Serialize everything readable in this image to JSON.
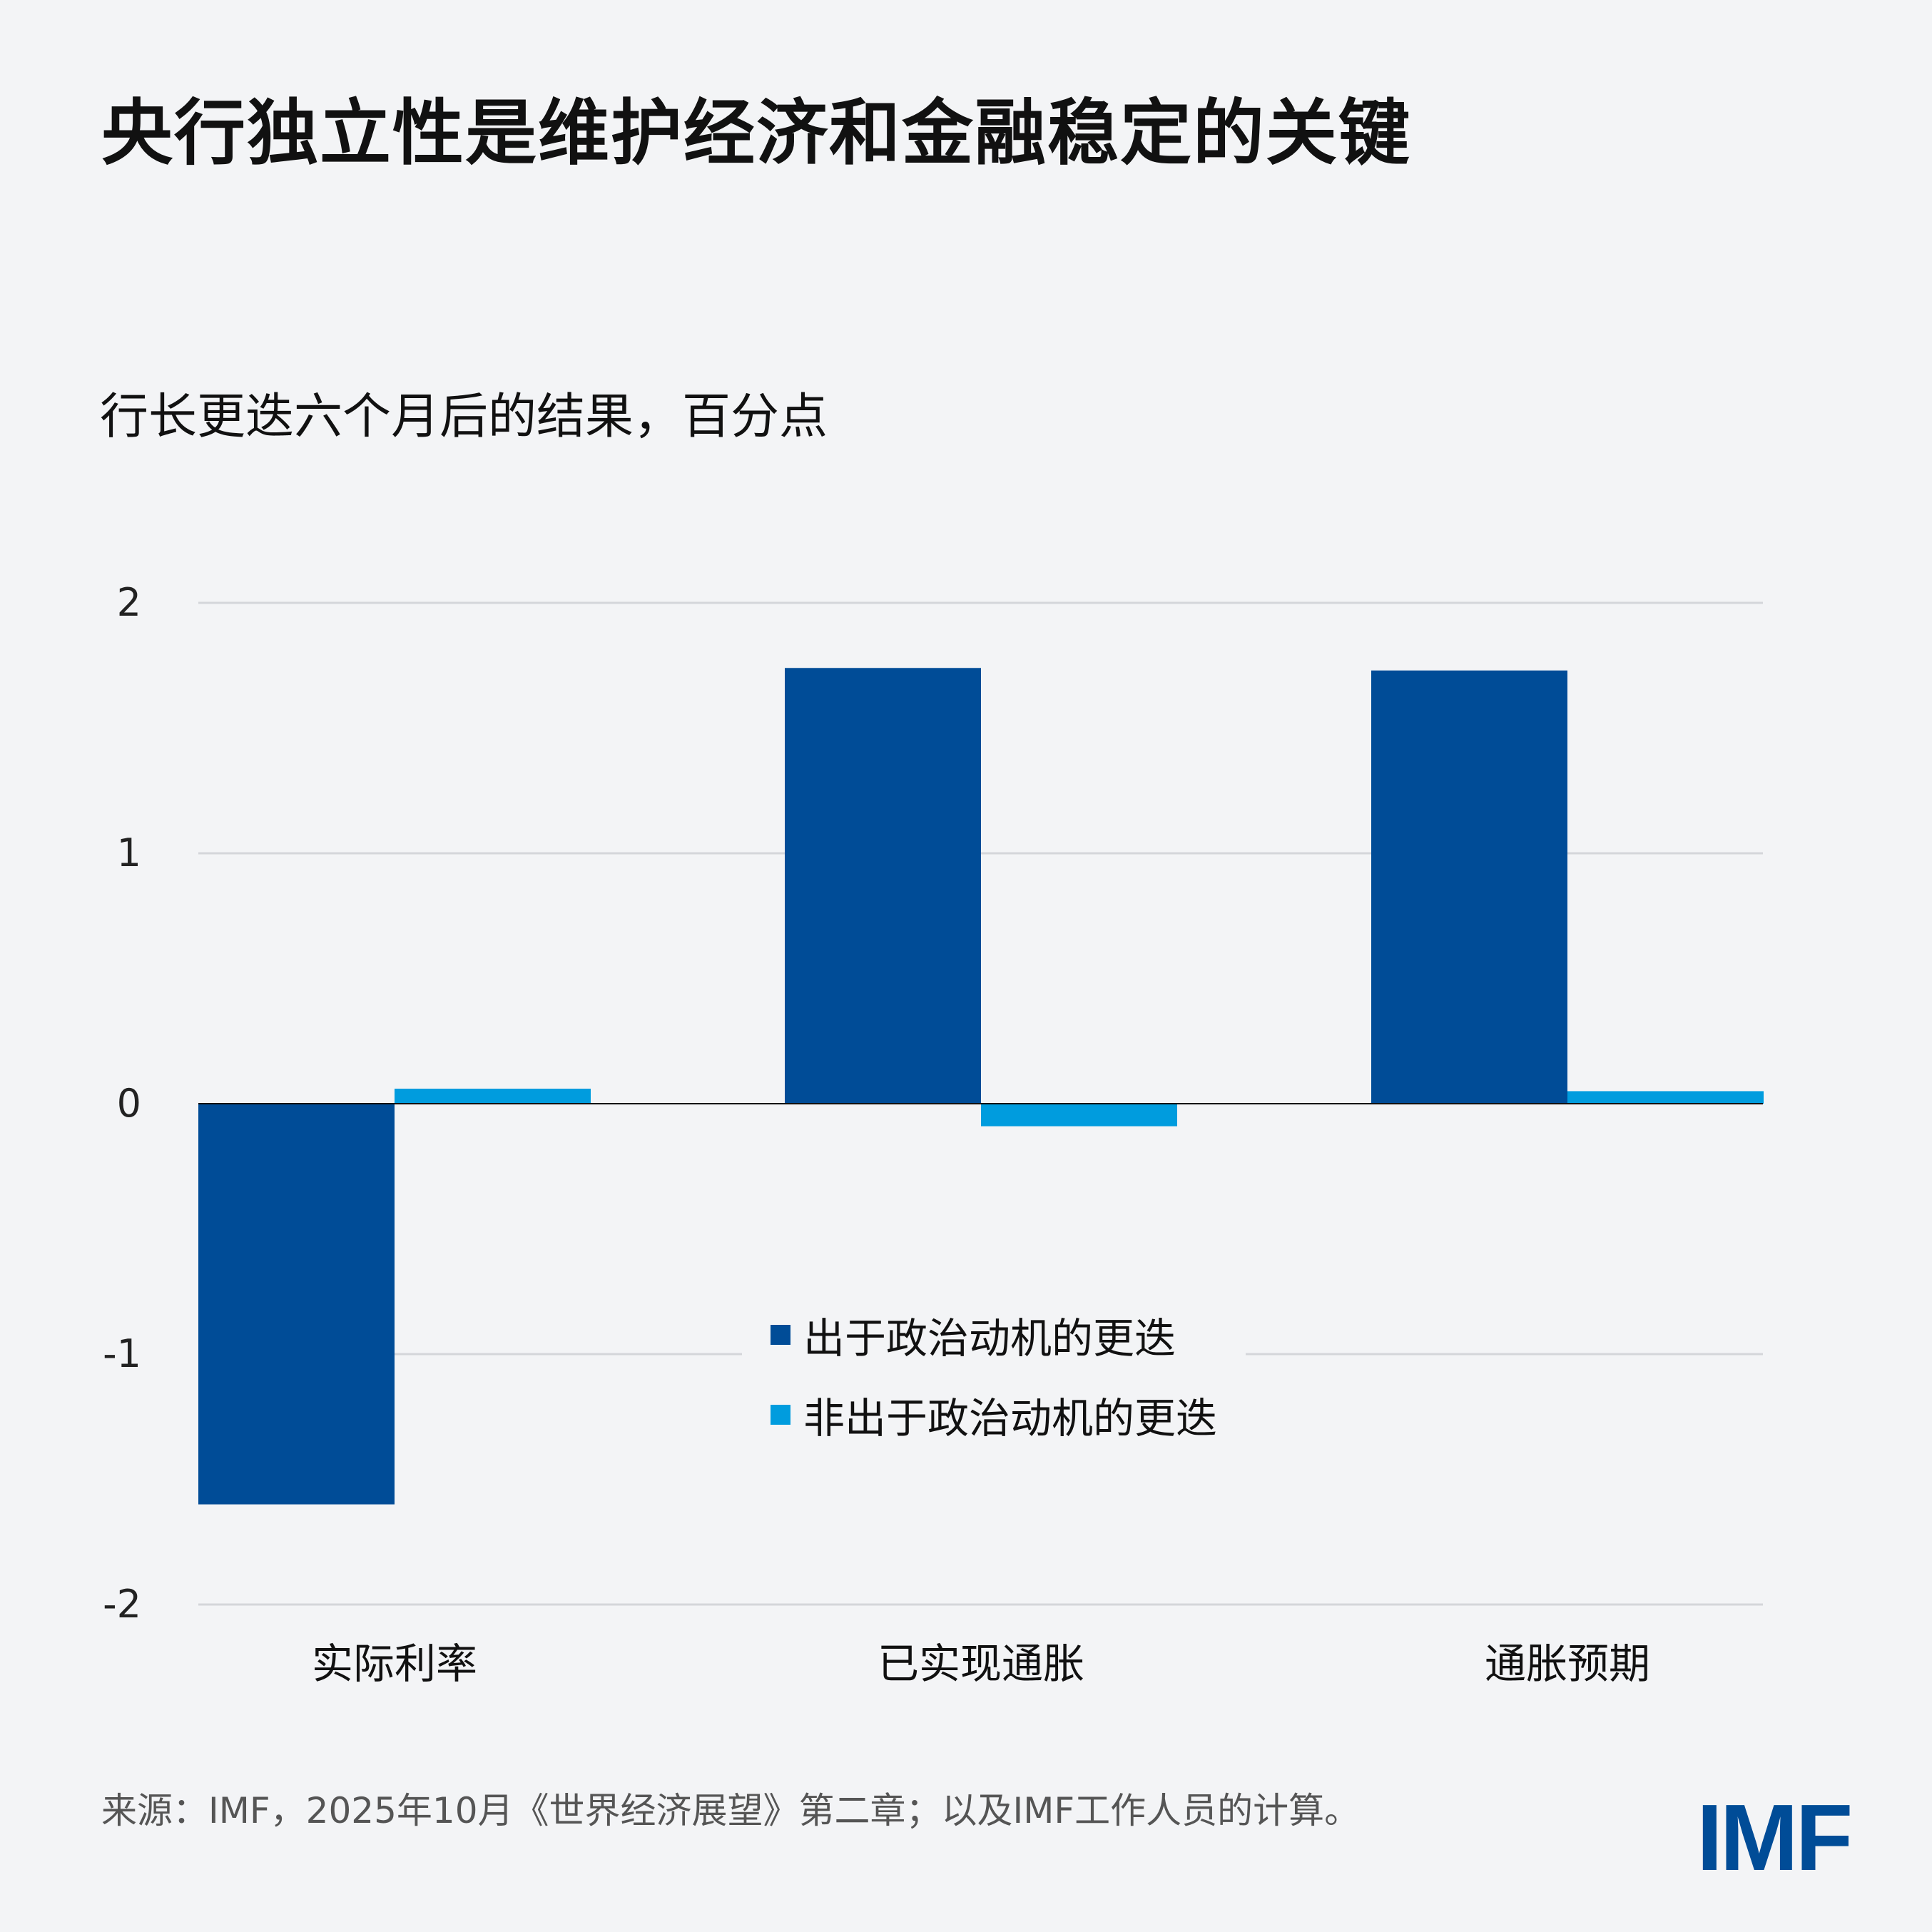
{
  "title": "央行独立性是维护经济和金融稳定的关键",
  "subtitle": "行长更迭六个月后的结果，百分点",
  "source": "来源：IMF，2025年10月《世界经济展望》第二章；以及IMF工作人员的计算。",
  "logo": "IMF",
  "colors": {
    "background": "#f3f4f6",
    "political": "#004C97",
    "non_political": "#009CDE"
  },
  "chart_data": {
    "type": "bar",
    "categories": [
      "实际利率",
      "已实现通胀",
      "通胀预期"
    ],
    "series": [
      {
        "name": "出于政治动机的更迭",
        "values": [
          -1.6,
          1.74,
          1.73
        ],
        "color": "#004C97"
      },
      {
        "name": "非出于政治动机的更迭",
        "values": [
          0.06,
          -0.09,
          0.05
        ],
        "color": "#009CDE"
      }
    ],
    "ylim": [
      -2,
      2
    ],
    "yticks": [
      "2",
      "1",
      "0",
      "-1",
      "-2"
    ],
    "grid": true,
    "legend": "center"
  }
}
